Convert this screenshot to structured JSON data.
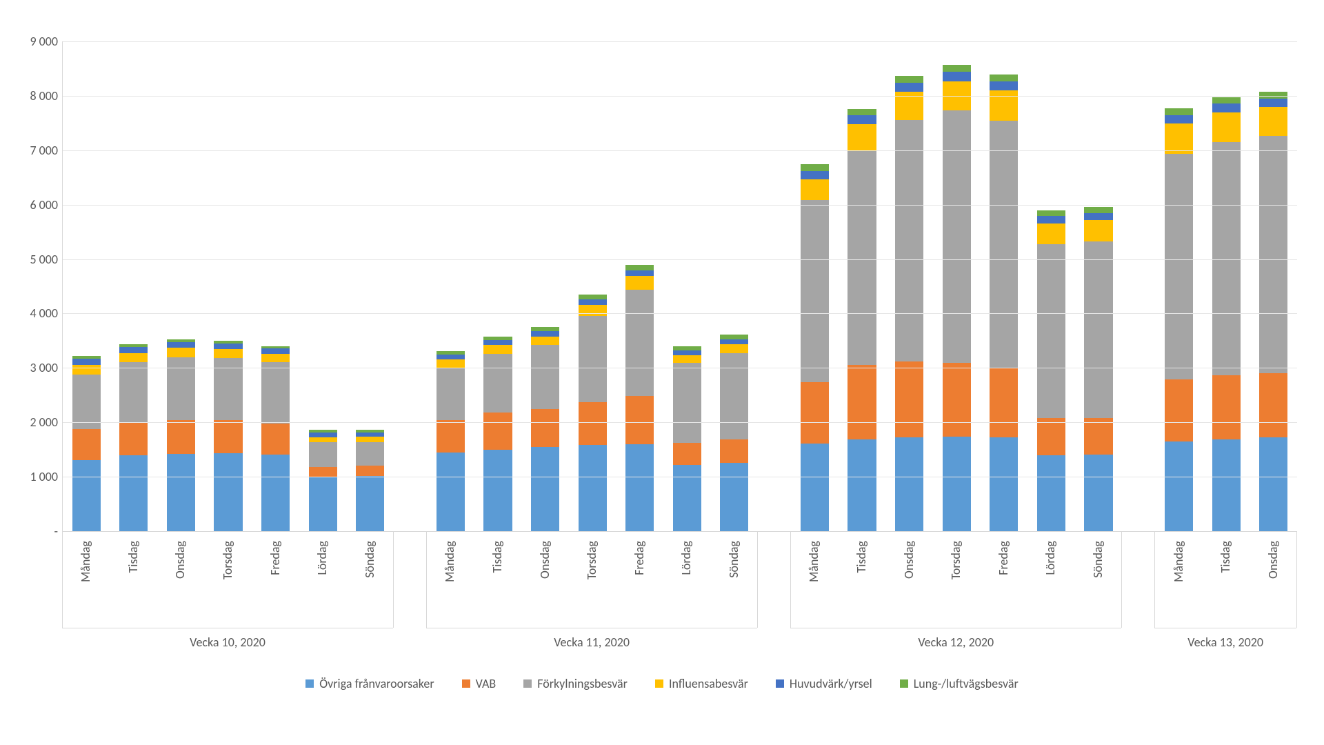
{
  "chart": {
    "type": "stacked-bar",
    "background_color": "#ffffff",
    "grid_color": "#e6e6e6",
    "axis_color": "#d9d9d9",
    "text_color": "#595959",
    "tick_fontsize": 18,
    "label_fontsize": 18,
    "legend_fontsize": 18,
    "ylim": [
      0,
      9000
    ],
    "ytick_step": 1000,
    "ytick_labels": [
      "-",
      "1 000",
      "2 000",
      "3 000",
      "4 000",
      "5 000",
      "6 000",
      "7 000",
      "8 000",
      "9 000"
    ],
    "bar_width_ratio": 0.6,
    "group_gap_ratio": 0.7,
    "series": [
      {
        "key": "ovriga",
        "label": "Övriga frånvaroorsaker",
        "color": "#5b9bd5"
      },
      {
        "key": "vab",
        "label": "VAB",
        "color": "#ed7d31"
      },
      {
        "key": "forkylning",
        "label": "Förkylningsbesvär",
        "color": "#a5a5a5"
      },
      {
        "key": "influensa",
        "label": "Influensabesvär",
        "color": "#ffc000"
      },
      {
        "key": "huvudvark",
        "label": "Huvudvärk/yrsel",
        "color": "#4472c4"
      },
      {
        "key": "lung",
        "label": "Lung-/luftvägsbesvär",
        "color": "#70ad47"
      }
    ],
    "groups": [
      {
        "label": "Vecka 10, 2020",
        "days": [
          {
            "label": "Måndag",
            "ovriga": 1300,
            "vab": 580,
            "forkylning": 1000,
            "influensa": 170,
            "huvudvark": 120,
            "lung": 50
          },
          {
            "label": "Tisdag",
            "ovriga": 1400,
            "vab": 600,
            "forkylning": 1100,
            "influensa": 170,
            "huvudvark": 110,
            "lung": 50
          },
          {
            "label": "Onsdag",
            "ovriga": 1420,
            "vab": 620,
            "forkylning": 1160,
            "influensa": 170,
            "huvudvark": 100,
            "lung": 50
          },
          {
            "label": "Torsdag",
            "ovriga": 1430,
            "vab": 610,
            "forkylning": 1140,
            "influensa": 170,
            "huvudvark": 100,
            "lung": 50
          },
          {
            "label": "Fredag",
            "ovriga": 1410,
            "vab": 570,
            "forkylning": 1120,
            "influensa": 160,
            "huvudvark": 100,
            "lung": 40
          },
          {
            "label": "Lördag",
            "ovriga": 1000,
            "vab": 180,
            "forkylning": 450,
            "influensa": 100,
            "huvudvark": 80,
            "lung": 60
          },
          {
            "label": "Söndag",
            "ovriga": 1010,
            "vab": 190,
            "forkylning": 440,
            "influensa": 100,
            "huvudvark": 70,
            "lung": 50
          }
        ]
      },
      {
        "label": "Vecka 11, 2020",
        "days": [
          {
            "label": "Måndag",
            "ovriga": 1440,
            "vab": 600,
            "forkylning": 960,
            "influensa": 160,
            "huvudvark": 90,
            "lung": 60
          },
          {
            "label": "Tisdag",
            "ovriga": 1500,
            "vab": 680,
            "forkylning": 1080,
            "influensa": 160,
            "huvudvark": 90,
            "lung": 60
          },
          {
            "label": "Onsdag",
            "ovriga": 1550,
            "vab": 700,
            "forkylning": 1170,
            "influensa": 160,
            "huvudvark": 100,
            "lung": 70
          },
          {
            "label": "Torsdag",
            "ovriga": 1580,
            "vab": 790,
            "forkylning": 1580,
            "influensa": 210,
            "huvudvark": 100,
            "lung": 90
          },
          {
            "label": "Fredag",
            "ovriga": 1600,
            "vab": 880,
            "forkylning": 1960,
            "influensa": 250,
            "huvudvark": 100,
            "lung": 100
          },
          {
            "label": "Lördag",
            "ovriga": 1220,
            "vab": 400,
            "forkylning": 1470,
            "influensa": 140,
            "huvudvark": 90,
            "lung": 80
          },
          {
            "label": "Söndag",
            "ovriga": 1250,
            "vab": 430,
            "forkylning": 1590,
            "influensa": 160,
            "huvudvark": 90,
            "lung": 90
          }
        ]
      },
      {
        "label": "Vecka 12, 2020",
        "days": [
          {
            "label": "Måndag",
            "ovriga": 1610,
            "vab": 1130,
            "forkylning": 3350,
            "influensa": 380,
            "huvudvark": 150,
            "lung": 120
          },
          {
            "label": "Tisdag",
            "ovriga": 1680,
            "vab": 1370,
            "forkylning": 3950,
            "influensa": 480,
            "huvudvark": 160,
            "lung": 120
          },
          {
            "label": "Onsdag",
            "ovriga": 1720,
            "vab": 1400,
            "forkylning": 4430,
            "influensa": 520,
            "huvudvark": 170,
            "lung": 130
          },
          {
            "label": "Torsdag",
            "ovriga": 1740,
            "vab": 1350,
            "forkylning": 4640,
            "influensa": 540,
            "huvudvark": 170,
            "lung": 130
          },
          {
            "label": "Fredag",
            "ovriga": 1720,
            "vab": 1280,
            "forkylning": 4540,
            "influensa": 560,
            "huvudvark": 170,
            "lung": 120
          },
          {
            "label": "Lördag",
            "ovriga": 1390,
            "vab": 690,
            "forkylning": 3190,
            "influensa": 380,
            "huvudvark": 140,
            "lung": 110
          },
          {
            "label": "Söndag",
            "ovriga": 1410,
            "vab": 670,
            "forkylning": 3240,
            "influensa": 400,
            "huvudvark": 130,
            "lung": 110
          }
        ]
      },
      {
        "label": "Vecka 13, 2020",
        "days": [
          {
            "label": "Måndag",
            "ovriga": 1650,
            "vab": 1140,
            "forkylning": 4150,
            "influensa": 550,
            "huvudvark": 160,
            "lung": 120
          },
          {
            "label": "Tisdag",
            "ovriga": 1690,
            "vab": 1180,
            "forkylning": 4280,
            "influensa": 550,
            "huvudvark": 160,
            "lung": 120
          },
          {
            "label": "Onsdag",
            "ovriga": 1730,
            "vab": 1170,
            "forkylning": 4360,
            "influensa": 530,
            "huvudvark": 160,
            "lung": 120
          }
        ]
      }
    ]
  }
}
